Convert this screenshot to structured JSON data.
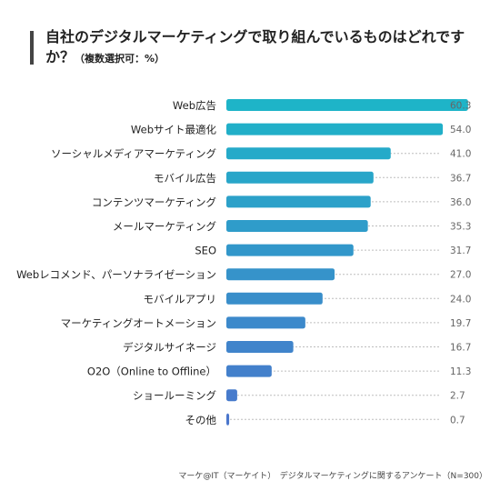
{
  "chart_data": {
    "type": "bar",
    "orientation": "horizontal",
    "title": "自社のデジタルマーケティングで取り組んでいるものはどれですか？",
    "subtitle": "（複数選択可：%）",
    "categories": [
      "Web広告",
      "Webサイト最適化",
      "ソーシャルメディアマーケティング",
      "モバイル広告",
      "コンテンツマーケティング",
      "メールマーケティング",
      "SEO",
      "Webレコメンド、パーソナライゼーション",
      "モバイルアプリ",
      "マーケティングオートメーション",
      "デジタルサイネージ",
      "O2O（Online to Offline）",
      "ショールーミング",
      "その他"
    ],
    "values": [
      60.3,
      54.0,
      41.0,
      36.7,
      36.0,
      35.3,
      31.7,
      27.0,
      24.0,
      19.7,
      16.7,
      11.3,
      2.7,
      0.7
    ],
    "value_labels": [
      "60.3",
      "54.0",
      "41.0",
      "36.7",
      "36.0",
      "35.3",
      "31.7",
      "27.0",
      "24.0",
      "19.7",
      "16.7",
      "11.3",
      "2.7",
      "0.7"
    ],
    "xlim": [
      0,
      66
    ],
    "grid": false,
    "legend": "none",
    "colors": {
      "start": "#1eb4c8",
      "end": "#4a76cc",
      "leader": "#bdbdbd",
      "label": "#666666"
    },
    "source": "マーケ@IT（マーケイト）　デジタルマーケティングに関するアンケート（N=300）"
  }
}
